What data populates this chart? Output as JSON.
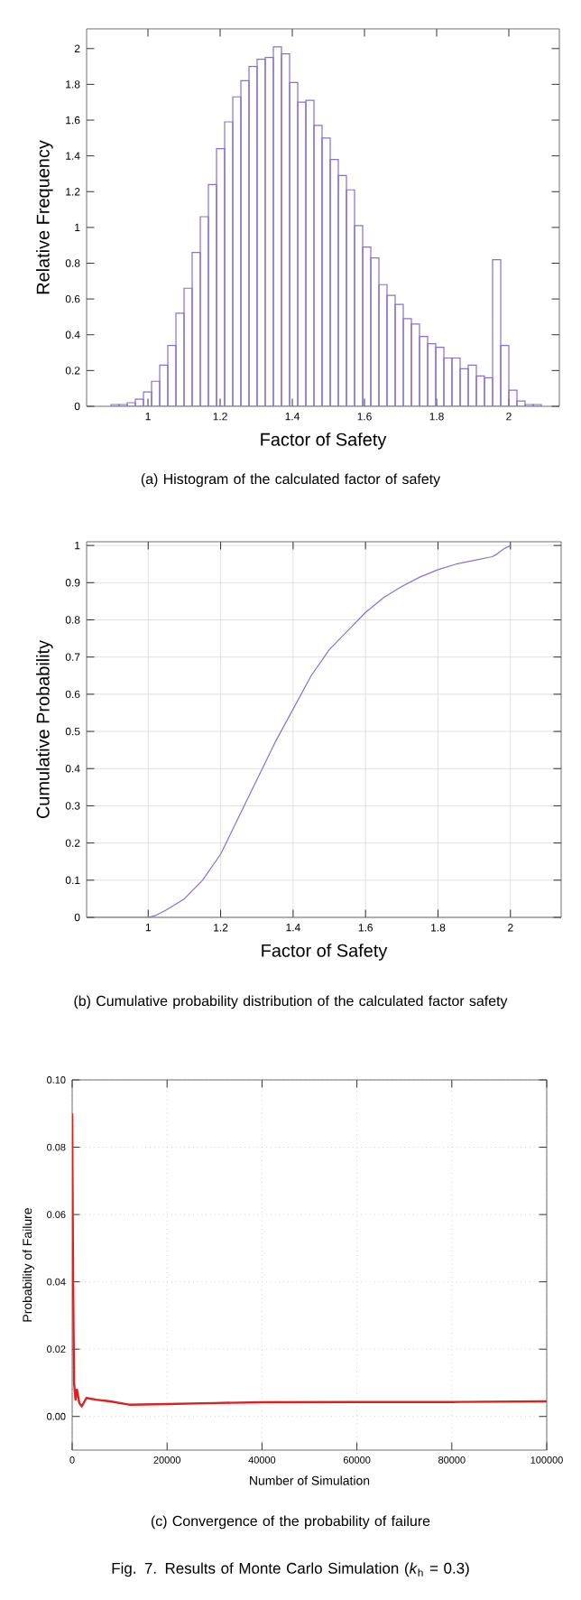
{
  "chart_data": [
    {
      "type": "histogram",
      "xlabel": "Factor of Safety",
      "ylabel": "Relative Frequency",
      "color": "#8a6fd1",
      "bins": [
        0.8975,
        0.92,
        0.9425,
        0.965,
        0.9875,
        1.01,
        1.0325,
        1.055,
        1.0775,
        1.1,
        1.1225,
        1.145,
        1.1675,
        1.19,
        1.2125,
        1.235,
        1.2575,
        1.28,
        1.3025,
        1.325,
        1.3475,
        1.37,
        1.3925,
        1.415,
        1.4375,
        1.46,
        1.4825,
        1.505,
        1.5275,
        1.55,
        1.5725,
        1.595,
        1.6175,
        1.64,
        1.6625,
        1.685,
        1.7075,
        1.73,
        1.7525,
        1.775,
        1.7975,
        1.82,
        1.8425,
        1.865,
        1.8875,
        1.91,
        1.9325,
        1.955,
        1.9775,
        2.0,
        2.0225,
        2.045,
        2.0675,
        2.09
      ],
      "values": [
        0.01,
        0.01,
        0.02,
        0.04,
        0.08,
        0.14,
        0.23,
        0.34,
        0.52,
        0.66,
        0.86,
        1.06,
        1.24,
        1.44,
        1.59,
        1.73,
        1.82,
        1.9,
        1.94,
        1.95,
        2.01,
        1.97,
        1.81,
        1.7,
        1.71,
        1.57,
        1.5,
        1.38,
        1.29,
        1.21,
        1.01,
        0.89,
        0.83,
        0.68,
        0.62,
        0.57,
        0.49,
        0.46,
        0.39,
        0.35,
        0.33,
        0.27,
        0.27,
        0.21,
        0.23,
        0.17,
        0.16,
        0.82,
        0.34,
        0.09,
        0.03,
        0.01,
        0.01
      ],
      "xlim": [
        0.83,
        2.14
      ],
      "ylim": [
        0,
        2.11
      ],
      "xticks": [
        1,
        1.2,
        1.4,
        1.6,
        1.8,
        2
      ],
      "yticks": [
        0,
        0.2,
        0.4,
        0.6,
        0.8,
        1,
        1.2,
        1.4,
        1.6,
        1.8,
        2
      ],
      "annotations": [
        "(a) Histogram of the calculated factor of safety"
      ]
    },
    {
      "type": "line",
      "xlabel": "Factor of Safety",
      "ylabel": "Cumulative Probability",
      "grid": true,
      "series": [
        {
          "color": "#8a6fd1",
          "x": [
            0.85,
            1.0,
            1.02,
            1.05,
            1.1,
            1.15,
            1.2,
            1.25,
            1.3,
            1.35,
            1.4,
            1.45,
            1.5,
            1.55,
            1.6,
            1.65,
            1.7,
            1.75,
            1.8,
            1.85,
            1.9,
            1.95,
            1.96,
            1.98,
            2.0
          ],
          "values": [
            0,
            0,
            0.005,
            0.02,
            0.05,
            0.1,
            0.17,
            0.27,
            0.37,
            0.47,
            0.56,
            0.65,
            0.72,
            0.77,
            0.82,
            0.86,
            0.89,
            0.915,
            0.935,
            0.95,
            0.96,
            0.97,
            0.975,
            0.99,
            1.0
          ]
        }
      ],
      "xlim": [
        0.83,
        2.14
      ],
      "ylim": [
        0,
        1.01
      ],
      "xticks": [
        1,
        1.2,
        1.4,
        1.6,
        1.8,
        2
      ],
      "yticks": [
        0,
        0.1,
        0.2,
        0.3,
        0.4,
        0.5,
        0.6,
        0.7,
        0.8,
        0.9,
        1
      ],
      "annotations": [
        "(b) Cumulative probability distribution of the calculated factor safety"
      ]
    },
    {
      "type": "line",
      "xlabel": "Number of Simulation",
      "ylabel": "Probability of Failure",
      "grid": true,
      "line_style": "solid",
      "series": [
        {
          "color": "#e02020",
          "x": [
            0,
            200,
            400,
            700,
            1000,
            1500,
            2000,
            3000,
            5000,
            8000,
            12000,
            20000,
            30000,
            40000,
            60000,
            80000,
            100000
          ],
          "values": [
            0.09,
            0.04,
            0.01,
            0.005,
            0.008,
            0.004,
            0.003,
            0.0055,
            0.005,
            0.0045,
            0.0035,
            0.0037,
            0.004,
            0.0042,
            0.0043,
            0.0043,
            0.0045
          ]
        }
      ],
      "xlim": [
        0,
        100000
      ],
      "ylim": [
        -0.01,
        0.1
      ],
      "xticks": [
        0,
        20000,
        40000,
        60000,
        80000,
        100000
      ],
      "yticks": [
        {
          "value": 0,
          "label": "0.00"
        },
        {
          "value": 0.02,
          "label": "0.02"
        },
        {
          "value": 0.04,
          "label": "0.04"
        },
        {
          "value": 0.06,
          "label": "0.06"
        },
        {
          "value": 0.08,
          "label": "0.08"
        },
        {
          "value": 0.1,
          "label": "0.10"
        }
      ],
      "annotations": [
        "(c) Convergence of the probability of failure",
        "Fig. 7. Results of Monte Carlo Simulation (*k*$_{h}$ = 0.3)"
      ]
    }
  ]
}
